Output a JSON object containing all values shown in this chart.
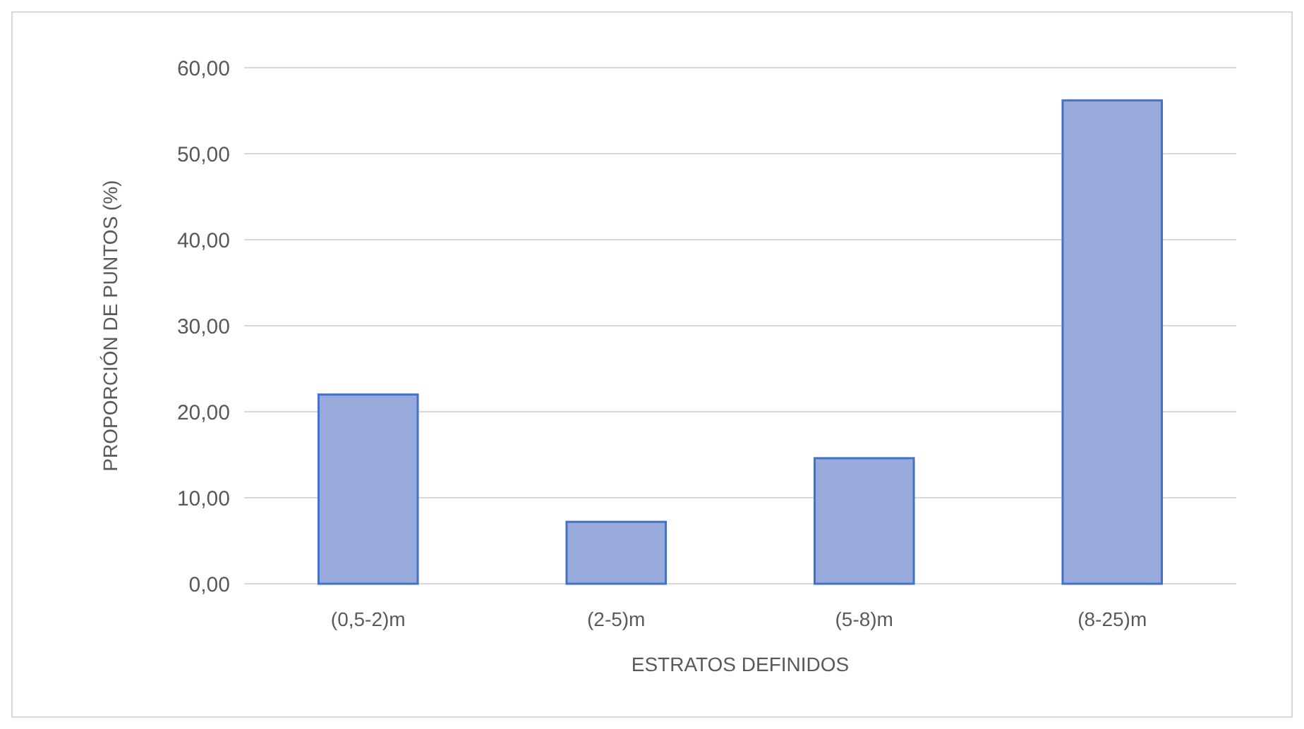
{
  "chart_data": {
    "type": "bar",
    "xlabel": "ESTRATOS DEFINIDOS",
    "ylabel": "PROPORCIÓN DE PUNTOS (%)",
    "categories": [
      "(0,5-2)m",
      "(2-5)m",
      "(5-8)m",
      "(8-25)m"
    ],
    "values": [
      22.0,
      7.2,
      14.6,
      56.2
    ],
    "color": "#98abdc",
    "ylim": [
      0,
      60
    ],
    "yticks": [
      {
        "value": 0,
        "label": "0,00"
      },
      {
        "value": 10,
        "label": "10,00"
      },
      {
        "value": 20,
        "label": "20,00"
      },
      {
        "value": 30,
        "label": "30,00"
      },
      {
        "value": 40,
        "label": "40,00"
      },
      {
        "value": 50,
        "label": "50,00"
      },
      {
        "value": 60,
        "label": "60,00"
      }
    ],
    "grid": "y"
  }
}
